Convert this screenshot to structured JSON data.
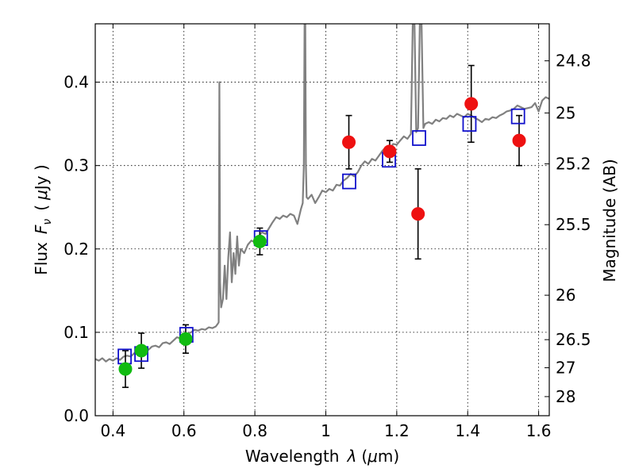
{
  "chart_data": {
    "type": "scatter",
    "xlabel_text": "Wavelength",
    "xlabel_symbol": "λ",
    "xlabel_unit_open": "(",
    "xlabel_unit_mu": "μ",
    "xlabel_unit_rest": "m)",
    "ylabel_text": "Flux",
    "ylabel_symbol": "F",
    "ylabel_sub": "ν",
    "ylabel_unit_open": "(",
    "ylabel_unit_mu": "μ",
    "ylabel_unit_rest": "Jy )",
    "y2label": "Magnitude (AB)",
    "xlim": [
      0.35,
      1.63
    ],
    "ylim": [
      0.0,
      0.47
    ],
    "xticks": [
      0.4,
      0.6,
      0.8,
      1.0,
      1.2,
      1.4,
      1.6
    ],
    "xtick_labels": [
      "0.4",
      "0.6",
      "0.8",
      "1",
      "1.2",
      "1.4",
      "1.6"
    ],
    "yticks": [
      0.0,
      0.1,
      0.2,
      0.3,
      0.4
    ],
    "ytick_labels": [
      "0.0",
      "0.1",
      "0.2",
      "0.3",
      "0.4"
    ],
    "y2ticks": [
      {
        "label": "24.8",
        "flux": 0.4256
      },
      {
        "label": "25",
        "flux": 0.3631
      },
      {
        "label": "25.2",
        "flux": 0.302
      },
      {
        "label": "25.5",
        "flux": 0.2291
      },
      {
        "label": "26",
        "flux": 0.1445
      },
      {
        "label": "26.5",
        "flux": 0.0912
      },
      {
        "label": "27",
        "flux": 0.0575
      },
      {
        "label": "28",
        "flux": 0.0229
      }
    ],
    "grid": true,
    "colors": {
      "model": "#808080",
      "green": "#11bb11",
      "red": "#ee1111",
      "box": "#1111cc",
      "error": "#000000"
    },
    "model_spectrum": [
      [
        0.35,
        0.068
      ],
      [
        0.36,
        0.066
      ],
      [
        0.37,
        0.069
      ],
      [
        0.38,
        0.065
      ],
      [
        0.39,
        0.068
      ],
      [
        0.4,
        0.066
      ],
      [
        0.41,
        0.069
      ],
      [
        0.42,
        0.067
      ],
      [
        0.43,
        0.071
      ],
      [
        0.44,
        0.072
      ],
      [
        0.45,
        0.071
      ],
      [
        0.46,
        0.075
      ],
      [
        0.47,
        0.074
      ],
      [
        0.48,
        0.078
      ],
      [
        0.49,
        0.08
      ],
      [
        0.5,
        0.079
      ],
      [
        0.51,
        0.083
      ],
      [
        0.52,
        0.084
      ],
      [
        0.53,
        0.082
      ],
      [
        0.54,
        0.087
      ],
      [
        0.55,
        0.088
      ],
      [
        0.56,
        0.086
      ],
      [
        0.57,
        0.09
      ],
      [
        0.58,
        0.094
      ],
      [
        0.59,
        0.093
      ],
      [
        0.6,
        0.096
      ],
      [
        0.61,
        0.098
      ],
      [
        0.62,
        0.1
      ],
      [
        0.63,
        0.103
      ],
      [
        0.64,
        0.102
      ],
      [
        0.65,
        0.104
      ],
      [
        0.66,
        0.103
      ],
      [
        0.67,
        0.106
      ],
      [
        0.68,
        0.105
      ],
      [
        0.69,
        0.107
      ],
      [
        0.695,
        0.11
      ],
      [
        0.698,
        0.112
      ],
      [
        0.7,
        0.4
      ],
      [
        0.702,
        0.16
      ],
      [
        0.705,
        0.13
      ],
      [
        0.71,
        0.14
      ],
      [
        0.715,
        0.18
      ],
      [
        0.72,
        0.14
      ],
      [
        0.725,
        0.19
      ],
      [
        0.73,
        0.22
      ],
      [
        0.735,
        0.16
      ],
      [
        0.74,
        0.195
      ],
      [
        0.745,
        0.17
      ],
      [
        0.75,
        0.215
      ],
      [
        0.755,
        0.18
      ],
      [
        0.76,
        0.2
      ],
      [
        0.77,
        0.195
      ],
      [
        0.78,
        0.205
      ],
      [
        0.79,
        0.21
      ],
      [
        0.8,
        0.208
      ],
      [
        0.81,
        0.215
      ],
      [
        0.82,
        0.22
      ],
      [
        0.83,
        0.218
      ],
      [
        0.84,
        0.225
      ],
      [
        0.85,
        0.232
      ],
      [
        0.86,
        0.238
      ],
      [
        0.87,
        0.236
      ],
      [
        0.88,
        0.24
      ],
      [
        0.89,
        0.238
      ],
      [
        0.9,
        0.242
      ],
      [
        0.91,
        0.24
      ],
      [
        0.92,
        0.23
      ],
      [
        0.93,
        0.248
      ],
      [
        0.935,
        0.255
      ],
      [
        0.938,
        0.3
      ],
      [
        0.94,
        0.47
      ],
      [
        0.942,
        0.47
      ],
      [
        0.944,
        0.3
      ],
      [
        0.946,
        0.262
      ],
      [
        0.95,
        0.26
      ],
      [
        0.96,
        0.265
      ],
      [
        0.97,
        0.255
      ],
      [
        0.98,
        0.262
      ],
      [
        0.99,
        0.27
      ],
      [
        1.0,
        0.268
      ],
      [
        1.01,
        0.272
      ],
      [
        1.02,
        0.27
      ],
      [
        1.03,
        0.277
      ],
      [
        1.04,
        0.276
      ],
      [
        1.05,
        0.282
      ],
      [
        1.06,
        0.285
      ],
      [
        1.07,
        0.29
      ],
      [
        1.08,
        0.287
      ],
      [
        1.09,
        0.292
      ],
      [
        1.1,
        0.3
      ],
      [
        1.11,
        0.305
      ],
      [
        1.12,
        0.302
      ],
      [
        1.13,
        0.308
      ],
      [
        1.14,
        0.306
      ],
      [
        1.15,
        0.312
      ],
      [
        1.16,
        0.318
      ],
      [
        1.17,
        0.322
      ],
      [
        1.18,
        0.32
      ],
      [
        1.19,
        0.326
      ],
      [
        1.2,
        0.325
      ],
      [
        1.21,
        0.33
      ],
      [
        1.22,
        0.335
      ],
      [
        1.23,
        0.332
      ],
      [
        1.24,
        0.338
      ],
      [
        1.245,
        0.47
      ],
      [
        1.25,
        0.47
      ],
      [
        1.255,
        0.34
      ],
      [
        1.26,
        0.345
      ],
      [
        1.265,
        0.47
      ],
      [
        1.27,
        0.47
      ],
      [
        1.275,
        0.345
      ],
      [
        1.28,
        0.35
      ],
      [
        1.29,
        0.352
      ],
      [
        1.3,
        0.35
      ],
      [
        1.31,
        0.355
      ],
      [
        1.32,
        0.353
      ],
      [
        1.33,
        0.357
      ],
      [
        1.34,
        0.356
      ],
      [
        1.35,
        0.36
      ],
      [
        1.36,
        0.358
      ],
      [
        1.37,
        0.362
      ],
      [
        1.38,
        0.36
      ],
      [
        1.39,
        0.358
      ],
      [
        1.4,
        0.362
      ],
      [
        1.41,
        0.36
      ],
      [
        1.42,
        0.357
      ],
      [
        1.43,
        0.355
      ],
      [
        1.44,
        0.352
      ],
      [
        1.45,
        0.356
      ],
      [
        1.46,
        0.355
      ],
      [
        1.47,
        0.358
      ],
      [
        1.48,
        0.357
      ],
      [
        1.49,
        0.36
      ],
      [
        1.5,
        0.362
      ],
      [
        1.51,
        0.365
      ],
      [
        1.52,
        0.366
      ],
      [
        1.53,
        0.368
      ],
      [
        1.54,
        0.372
      ],
      [
        1.55,
        0.37
      ],
      [
        1.56,
        0.368
      ],
      [
        1.57,
        0.369
      ],
      [
        1.58,
        0.37
      ],
      [
        1.59,
        0.375
      ],
      [
        1.6,
        0.365
      ],
      [
        1.61,
        0.378
      ],
      [
        1.62,
        0.382
      ],
      [
        1.63,
        0.38
      ]
    ],
    "green_points": [
      {
        "x": 0.435,
        "y": 0.056,
        "err": 0.022
      },
      {
        "x": 0.48,
        "y": 0.078,
        "err": 0.021
      },
      {
        "x": 0.605,
        "y": 0.092,
        "err": 0.017
      },
      {
        "x": 0.814,
        "y": 0.209,
        "err": 0.016
      }
    ],
    "red_points": [
      {
        "x": 1.065,
        "y": 0.328,
        "err": 0.032
      },
      {
        "x": 1.18,
        "y": 0.317,
        "err": 0.013
      },
      {
        "x": 1.26,
        "y": 0.242,
        "err": 0.054
      },
      {
        "x": 1.41,
        "y": 0.374,
        "err": 0.046
      },
      {
        "x": 1.545,
        "y": 0.33,
        "err": 0.03
      }
    ],
    "model_boxes": [
      {
        "x": 0.433,
        "y": 0.071
      },
      {
        "x": 0.48,
        "y": 0.074
      },
      {
        "x": 0.607,
        "y": 0.097
      },
      {
        "x": 0.817,
        "y": 0.213
      },
      {
        "x": 1.066,
        "y": 0.281
      },
      {
        "x": 1.178,
        "y": 0.307
      },
      {
        "x": 1.263,
        "y": 0.333
      },
      {
        "x": 1.405,
        "y": 0.35
      },
      {
        "x": 1.542,
        "y": 0.359
      }
    ]
  }
}
